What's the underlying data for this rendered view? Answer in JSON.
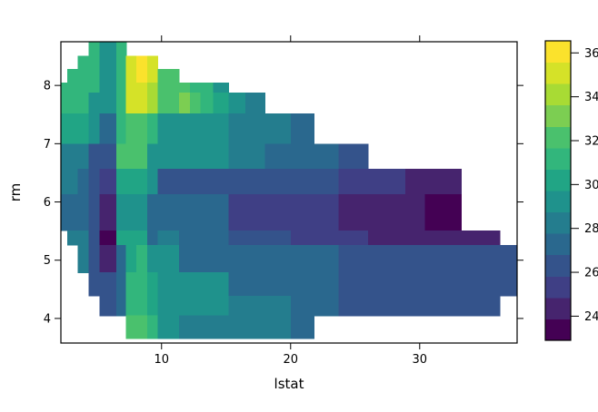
{
  "figure": {
    "background": "#ffffff"
  },
  "chart_data": {
    "type": "heatmap",
    "title": "",
    "xlabel": "lstat",
    "ylabel": "rm",
    "x_ticks": [
      10,
      20,
      30
    ],
    "y_ticks": [
      4,
      5,
      6,
      7,
      8
    ],
    "x_range": [
      2.2,
      37.55
    ],
    "y_range": [
      3.578,
      8.75
    ],
    "grid": false,
    "legend_position": "right",
    "legend": {
      "tick_values": [
        24,
        26,
        28,
        30,
        32,
        34,
        36
      ],
      "value_range": [
        22.9,
        36.55
      ],
      "n_bands": 14,
      "band_colors": [
        "#440154",
        "#46246E",
        "#3F3F85",
        "#34538B",
        "#2A688E",
        "#247D8E",
        "#1F928C",
        "#21A585",
        "#32B67C",
        "#4AC16D",
        "#7CCE52",
        "#A8DB34",
        "#D5E228",
        "#FBE22C"
      ],
      "band_value_mid": [
        23.4,
        24.4,
        25.3,
        26.3,
        27.3,
        28.3,
        29.2,
        30.2,
        31.2,
        32.2,
        33.1,
        34.1,
        35.1,
        36.1
      ]
    },
    "col_edges_lstat": [
      2.2,
      2.7,
      3.5,
      4.35,
      5.2,
      6.5,
      7.25,
      8.05,
      8.9,
      9.7,
      10.5,
      11.35,
      12.2,
      13.0,
      14.0,
      15.2,
      16.5,
      18.0,
      20.0,
      21.8,
      23.7,
      26.0,
      28.9,
      30.4,
      33.2,
      36.2,
      37.55
    ],
    "row_edges_rm": [
      8.75,
      8.51,
      8.28,
      8.05,
      7.88,
      7.52,
      7.0,
      6.57,
      6.13,
      5.51,
      5.26,
      4.79,
      4.39,
      4.05,
      3.66
    ],
    "band_matrix_note": "rows top-to-bottom (high rm to low rm); values are color-band indices 1-14 (1=lowest yhat ~23, 14=highest ~36.5); 0 = no data (outside convex hull, white)",
    "band_matrix": [
      [
        0,
        0,
        0,
        9,
        7,
        9,
        0,
        0,
        0,
        0,
        0,
        0,
        0,
        0,
        0,
        0,
        0,
        0,
        0,
        0,
        0,
        0,
        0,
        0,
        0,
        0
      ],
      [
        0,
        0,
        9,
        9,
        7,
        9,
        13,
        14,
        13,
        0,
        0,
        0,
        0,
        0,
        0,
        0,
        0,
        0,
        0,
        0,
        0,
        0,
        0,
        0,
        0,
        0
      ],
      [
        0,
        9,
        9,
        9,
        7,
        9,
        13,
        14,
        13,
        10,
        10,
        0,
        0,
        0,
        0,
        0,
        0,
        0,
        0,
        0,
        0,
        0,
        0,
        0,
        0,
        0
      ],
      [
        9,
        9,
        9,
        9,
        7,
        9,
        13,
        13,
        12,
        10,
        10,
        10,
        9,
        9,
        7,
        0,
        0,
        0,
        0,
        0,
        0,
        0,
        0,
        0,
        0,
        0
      ],
      [
        9,
        9,
        9,
        7,
        7,
        9,
        13,
        13,
        12,
        10,
        10,
        11,
        10,
        9,
        8,
        7,
        6,
        0,
        0,
        0,
        0,
        0,
        0,
        0,
        0,
        0
      ],
      [
        8,
        8,
        8,
        7,
        5,
        9,
        10,
        10,
        9,
        7,
        7,
        7,
        7,
        7,
        7,
        6,
        6,
        6,
        5,
        0,
        0,
        0,
        0,
        0,
        0,
        0
      ],
      [
        6,
        6,
        6,
        4,
        4,
        10,
        10,
        10,
        7,
        7,
        7,
        7,
        7,
        7,
        7,
        6,
        6,
        5,
        5,
        5,
        4,
        0,
        0,
        0,
        0,
        0
      ],
      [
        6,
        6,
        5,
        4,
        3,
        8,
        8,
        8,
        7,
        4,
        4,
        4,
        4,
        4,
        4,
        4,
        4,
        4,
        4,
        4,
        3,
        3,
        2,
        2,
        0,
        0
      ],
      [
        5,
        5,
        5,
        4,
        2,
        7,
        7,
        7,
        5,
        5,
        5,
        5,
        5,
        5,
        5,
        3,
        3,
        3,
        3,
        3,
        2,
        2,
        2,
        1,
        0,
        0
      ],
      [
        0,
        6,
        6,
        4,
        1,
        8,
        8,
        8,
        5,
        6,
        6,
        5,
        5,
        5,
        5,
        4,
        4,
        4,
        3,
        3,
        3,
        2,
        2,
        2,
        2,
        0
      ],
      [
        0,
        0,
        6,
        4,
        2,
        5,
        8,
        9,
        7,
        7,
        7,
        5,
        5,
        5,
        5,
        5,
        5,
        5,
        5,
        5,
        4,
        4,
        4,
        4,
        4,
        4
      ],
      [
        0,
        0,
        0,
        4,
        4,
        5,
        9,
        9,
        8,
        7,
        7,
        7,
        7,
        7,
        7,
        5,
        5,
        5,
        5,
        5,
        4,
        4,
        4,
        4,
        4,
        4
      ],
      [
        0,
        0,
        0,
        0,
        4,
        5,
        9,
        9,
        8,
        7,
        7,
        7,
        7,
        7,
        7,
        6,
        6,
        6,
        5,
        5,
        4,
        4,
        4,
        4,
        4,
        0
      ],
      [
        0,
        0,
        0,
        0,
        0,
        0,
        10,
        10,
        9,
        7,
        7,
        6,
        6,
        6,
        6,
        6,
        6,
        6,
        5,
        0,
        0,
        0,
        0,
        0,
        0,
        0
      ]
    ]
  }
}
